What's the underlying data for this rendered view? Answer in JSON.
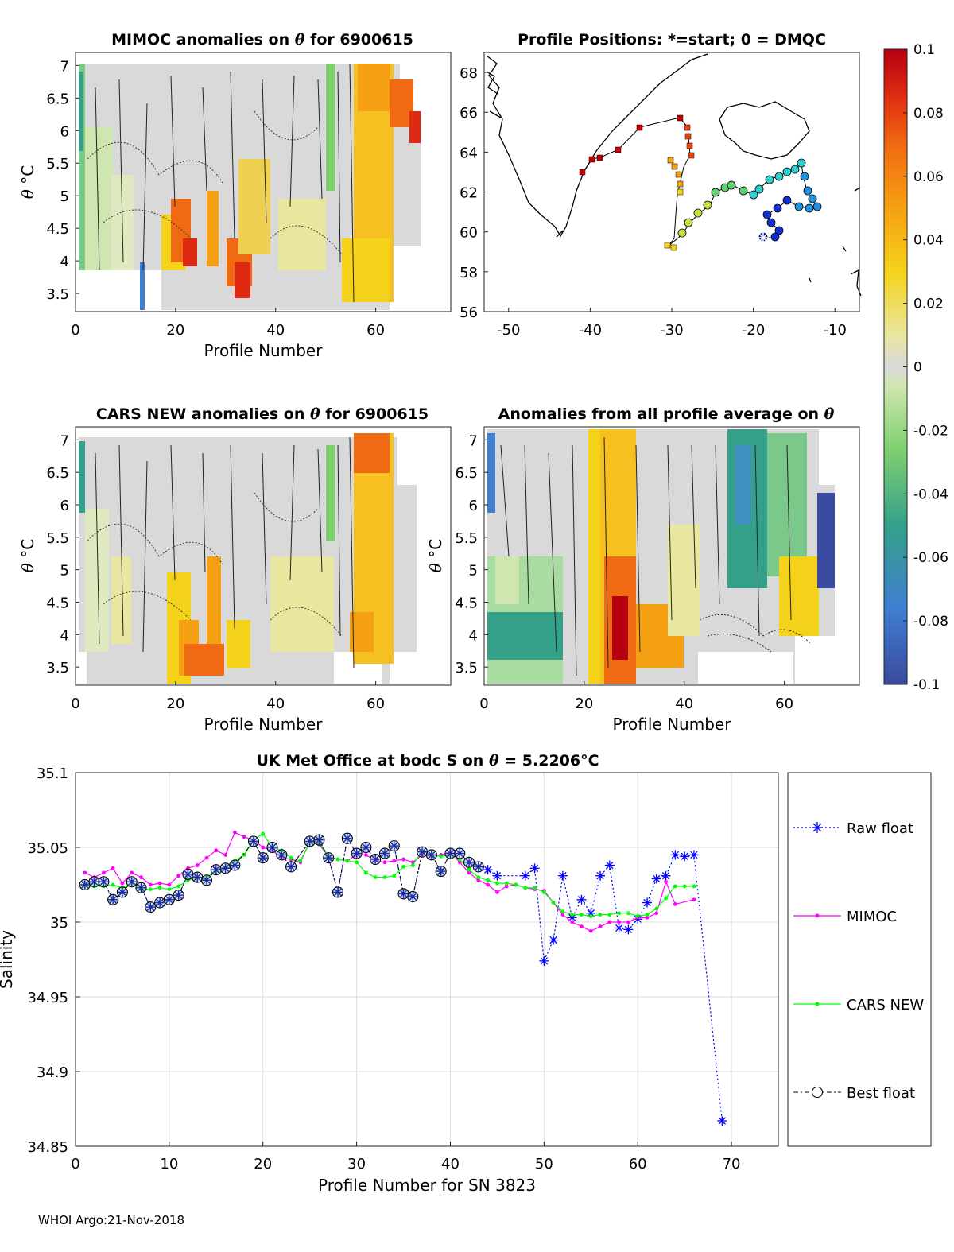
{
  "footer": "WHOI Argo:21-Nov-2018",
  "colorbar": {
    "min": -0.1,
    "max": 0.1,
    "tick_values": [
      0.1,
      0.08,
      0.06,
      0.04,
      0.02,
      0,
      -0.02,
      -0.04,
      -0.06,
      -0.08,
      -0.1
    ],
    "tick_labels": [
      "0.1",
      "0.08",
      "0.06",
      "0.04",
      "0.02",
      "0",
      "-0.02",
      "-0.04",
      "-0.06",
      "-0.08",
      "-0.1"
    ]
  },
  "panels": {
    "mimoc": {
      "title_prefix": "MIMOC anomalies on ",
      "title_symbol": "θ",
      "title_suffix": "  for 6900615",
      "xlabel": "Profile Number",
      "ylabel_symbol": "θ",
      "ylabel_unit": "°C",
      "xticks": [
        0,
        20,
        40,
        60
      ],
      "yticks": [
        3.5,
        4,
        4.5,
        5,
        5.5,
        6,
        6.5,
        7
      ]
    },
    "cars": {
      "title_prefix": "CARS NEW anomalies on ",
      "title_symbol": "θ",
      "title_suffix": " for 6900615",
      "xlabel": "Profile Number",
      "ylabel_symbol": "θ",
      "ylabel_unit": "°C",
      "xticks": [
        0,
        20,
        40,
        60
      ],
      "yticks": [
        3.5,
        4,
        4.5,
        5,
        5.5,
        6,
        6.5,
        7
      ]
    },
    "all_avg": {
      "title_prefix": "Anomalies from all profile average on ",
      "title_symbol": "θ",
      "xlabel": "Profile Number",
      "ylabel_symbol": "θ",
      "ylabel_unit": "°C",
      "xticks": [
        0,
        20,
        40,
        60
      ],
      "yticks": [
        3.5,
        4,
        4.5,
        5,
        5.5,
        6,
        6.5,
        7
      ]
    },
    "map": {
      "title": "Profile Positions: *=start; 0 = DMQC",
      "xticks": [
        -50,
        -40,
        -30,
        -20,
        -10
      ],
      "yticks": [
        56,
        58,
        60,
        62,
        64,
        66,
        68
      ]
    }
  },
  "chart_data": [
    {
      "type": "line",
      "title_prefix": "UK Met Office at bodc S on ",
      "title_symbol": "θ",
      "title_value": " = 5.2206",
      "title_unit": "°C",
      "xlabel": "Profile Number for SN 3823",
      "ylabel": "Salinity",
      "xlim": [
        0,
        75
      ],
      "ylim": [
        34.85,
        35.1
      ],
      "xticks": [
        0,
        10,
        20,
        30,
        40,
        50,
        60,
        70
      ],
      "yticks": [
        34.85,
        34.9,
        34.95,
        35,
        35.05,
        35.1
      ],
      "ytick_labels": [
        "34.85",
        "34.9",
        "34.95",
        "35",
        "35.05",
        "35.1"
      ],
      "grid": true,
      "legend_position": "right-outside",
      "series": [
        {
          "name": "Raw float",
          "color": "#0000ff",
          "style": "dotted-star",
          "x": [
            1,
            2,
            3,
            4,
            5,
            6,
            7,
            8,
            9,
            10,
            11,
            12,
            13,
            14,
            15,
            16,
            17,
            19,
            20,
            21,
            22,
            23,
            25,
            26,
            27,
            28,
            29,
            30,
            31,
            32,
            33,
            34,
            35,
            36,
            37,
            38,
            39,
            40,
            41,
            42,
            43,
            44,
            45,
            48,
            49,
            50,
            51,
            52,
            53,
            54,
            55,
            56,
            57,
            58,
            59,
            60,
            61,
            62,
            63,
            64,
            65,
            66,
            69
          ],
          "y": [
            35.025,
            35.027,
            35.027,
            35.015,
            35.02,
            35.027,
            35.023,
            35.01,
            35.013,
            35.015,
            35.018,
            35.032,
            35.03,
            35.028,
            35.035,
            35.036,
            35.038,
            35.054,
            35.043,
            35.05,
            35.045,
            35.037,
            35.054,
            35.055,
            35.043,
            35.02,
            35.056,
            35.046,
            35.05,
            35.042,
            35.046,
            35.051,
            35.019,
            35.017,
            35.047,
            35.045,
            35.034,
            35.046,
            35.046,
            35.04,
            35.037,
            35.035,
            35.031,
            35.031,
            35.036,
            34.974,
            34.988,
            35.031,
            35.003,
            35.015,
            35.006,
            35.031,
            35.038,
            34.996,
            34.995,
            35.002,
            35.013,
            35.029,
            35.031,
            35.045,
            35.044,
            35.045,
            34.867
          ]
        },
        {
          "name": "MIMOC",
          "color": "#ff00ff",
          "style": "solid-dot",
          "x": [
            1,
            2,
            3,
            4,
            5,
            6,
            7,
            8,
            9,
            10,
            11,
            12,
            13,
            14,
            15,
            16,
            17,
            18,
            19,
            20,
            21,
            22,
            23,
            24,
            25,
            26,
            27,
            28,
            29,
            30,
            31,
            32,
            33,
            34,
            35,
            36,
            37,
            38,
            39,
            40,
            41,
            42,
            43,
            44,
            45,
            46,
            47,
            48,
            49,
            50,
            51,
            52,
            53,
            54,
            55,
            56,
            57,
            58,
            59,
            60,
            61,
            62,
            63,
            64,
            66
          ],
          "y": [
            35.033,
            35.03,
            35.033,
            35.036,
            35.026,
            35.033,
            35.03,
            35.025,
            35.026,
            35.025,
            35.031,
            35.036,
            35.038,
            35.043,
            35.048,
            35.045,
            35.06,
            35.057,
            35.055,
            35.05,
            35.048,
            35.043,
            35.042,
            35.04,
            35.054,
            35.052,
            35.044,
            35.042,
            35.041,
            35.045,
            35.045,
            35.041,
            35.04,
            35.041,
            35.042,
            35.04,
            35.045,
            35.044,
            35.045,
            35.047,
            35.04,
            35.033,
            35.028,
            35.025,
            35.02,
            35.024,
            35.025,
            35.023,
            35.022,
            35.021,
            35.013,
            35.005,
            35.0,
            34.997,
            34.994,
            34.997,
            35.0,
            35.0,
            35.0,
            35.003,
            35.003,
            35.006,
            35.027,
            35.012,
            35.015
          ]
        },
        {
          "name": "CARS NEW",
          "color": "#00ff00",
          "style": "solid-dot",
          "x": [
            1,
            2,
            3,
            4,
            5,
            6,
            7,
            8,
            9,
            10,
            11,
            12,
            13,
            14,
            15,
            16,
            17,
            18,
            19,
            20,
            21,
            22,
            23,
            24,
            25,
            26,
            27,
            28,
            29,
            30,
            31,
            32,
            33,
            34,
            35,
            36,
            37,
            38,
            39,
            40,
            41,
            42,
            43,
            44,
            45,
            46,
            47,
            48,
            49,
            50,
            51,
            52,
            53,
            54,
            55,
            56,
            57,
            58,
            59,
            60,
            61,
            62,
            63,
            64,
            65,
            66
          ],
          "y": [
            35.024,
            35.024,
            35.024,
            35.025,
            35.023,
            35.026,
            35.022,
            35.022,
            35.023,
            35.022,
            35.024,
            35.028,
            35.03,
            35.03,
            35.034,
            35.036,
            35.041,
            35.045,
            35.055,
            35.059,
            35.05,
            35.048,
            35.043,
            35.041,
            35.053,
            35.053,
            35.044,
            35.042,
            35.041,
            35.04,
            35.033,
            35.03,
            35.03,
            35.031,
            35.037,
            35.038,
            35.048,
            35.045,
            35.044,
            35.045,
            35.042,
            35.035,
            35.03,
            35.028,
            35.026,
            35.026,
            35.025,
            35.023,
            35.023,
            35.02,
            35.013,
            35.007,
            35.005,
            35.005,
            35.004,
            35.005,
            35.005,
            35.006,
            35.006,
            35.004,
            35.005,
            35.009,
            35.016,
            35.024,
            35.024,
            35.024
          ]
        },
        {
          "name": "Best float",
          "color": "#000000",
          "style": "dashdot-circle",
          "x": [
            1,
            2,
            3,
            4,
            5,
            6,
            7,
            8,
            9,
            10,
            11,
            12,
            13,
            14,
            15,
            16,
            17,
            19,
            20,
            21,
            22,
            23,
            25,
            26,
            27,
            28,
            29,
            30,
            31,
            32,
            33,
            34,
            35,
            36,
            37,
            38,
            39,
            40,
            41,
            42,
            43
          ],
          "y": [
            35.025,
            35.027,
            35.027,
            35.015,
            35.02,
            35.027,
            35.023,
            35.01,
            35.013,
            35.015,
            35.018,
            35.032,
            35.03,
            35.028,
            35.035,
            35.036,
            35.038,
            35.054,
            35.043,
            35.05,
            35.045,
            35.037,
            35.054,
            35.055,
            35.043,
            35.02,
            35.056,
            35.046,
            35.05,
            35.042,
            35.046,
            35.051,
            35.019,
            35.017,
            35.047,
            35.045,
            35.034,
            35.046,
            35.046,
            35.04,
            35.037
          ]
        }
      ]
    }
  ]
}
